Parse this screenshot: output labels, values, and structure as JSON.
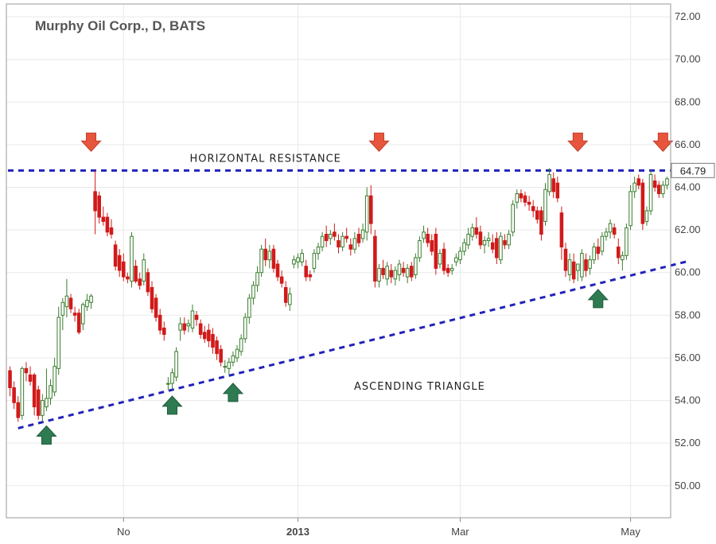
{
  "chart_data": {
    "type": "candlestick",
    "title": "Murphy Oil Corp., D, BATS",
    "ylim": [
      48.5,
      72.6
    ],
    "y_ticks": [
      "50.00",
      "52.00",
      "54.00",
      "56.00",
      "58.00",
      "60.00",
      "62.00",
      "64.00",
      "66.00",
      "68.00",
      "70.00",
      "72.00"
    ],
    "x_ticks": [
      {
        "label": "No",
        "index": 28,
        "bold": false
      },
      {
        "label": "2013",
        "index": 71,
        "bold": true
      },
      {
        "label": "Mar",
        "index": 111,
        "bold": false
      },
      {
        "label": "May",
        "index": 153,
        "bold": false
      }
    ],
    "last_price": "64.79",
    "grid": true,
    "colors": {
      "up": "#3a7d2e",
      "up_fill": "#ffffff",
      "down": "#d11a1a",
      "resistance": "#2222bb",
      "support": "#2222bb",
      "arrow_down": "#e8553d",
      "arrow_up": "#2e7b52"
    },
    "annotations": [
      {
        "text": "HORIZONTAL RESISTANCE",
        "index": 63,
        "y": 65.2
      },
      {
        "text": "ASCENDING TRIANGLE",
        "index": 101,
        "y": 54.5
      }
    ],
    "resistance": {
      "y": 64.79,
      "from_index": 0,
      "to_index": 167
    },
    "support": {
      "from_index": 2,
      "from_y": 52.7,
      "to_index": 167,
      "to_y": 60.55
    },
    "markers": [
      {
        "type": "down",
        "index": 20,
        "y": 66.1
      },
      {
        "type": "down",
        "index": 91,
        "y": 66.1
      },
      {
        "type": "down",
        "index": 140,
        "y": 66.1
      },
      {
        "type": "down",
        "index": 161,
        "y": 66.1
      },
      {
        "type": "up",
        "index": 9,
        "y": 52.4
      },
      {
        "type": "up",
        "index": 40,
        "y": 53.8
      },
      {
        "type": "up",
        "index": 55,
        "y": 54.4
      },
      {
        "type": "up",
        "index": 145,
        "y": 58.8
      }
    ],
    "candles": [
      [
        55.4,
        55.6,
        54.2,
        54.6
      ],
      [
        54.6,
        54.9,
        53.6,
        53.9
      ],
      [
        53.9,
        54.2,
        53.0,
        53.2
      ],
      [
        53.3,
        55.6,
        53.1,
        55.5
      ],
      [
        55.5,
        55.8,
        54.9,
        55.3
      ],
      [
        55.2,
        55.6,
        54.7,
        54.9
      ],
      [
        55.2,
        55.3,
        53.3,
        53.7
      ],
      [
        54.5,
        54.7,
        53.1,
        53.3
      ],
      [
        53.3,
        54.3,
        53.0,
        54.0
      ],
      [
        53.7,
        55.5,
        53.5,
        54.1
      ],
      [
        54.1,
        55.0,
        53.8,
        54.7
      ],
      [
        54.4,
        56.0,
        54.2,
        55.6
      ],
      [
        55.5,
        58.4,
        55.2,
        57.9
      ],
      [
        58.0,
        58.8,
        57.3,
        58.6
      ],
      [
        58.4,
        59.7,
        57.9,
        58.9
      ],
      [
        58.8,
        59.0,
        58.1,
        58.3
      ],
      [
        58.1,
        58.4,
        57.7,
        58.0
      ],
      [
        58.1,
        58.3,
        57.1,
        57.2
      ],
      [
        57.6,
        58.6,
        57.3,
        58.5
      ],
      [
        58.4,
        59.0,
        58.2,
        58.7
      ],
      [
        58.6,
        59.0,
        58.3,
        58.9
      ],
      [
        63.8,
        64.8,
        61.8,
        62.9
      ],
      [
        63.6,
        63.8,
        62.3,
        62.6
      ],
      [
        62.6,
        63.1,
        62.2,
        62.4
      ],
      [
        62.6,
        62.8,
        61.7,
        61.9
      ],
      [
        62.1,
        62.5,
        61.6,
        61.8
      ],
      [
        61.3,
        61.5,
        60.1,
        60.3
      ],
      [
        60.8,
        61.1,
        59.8,
        60.1
      ],
      [
        60.5,
        60.9,
        59.6,
        59.8
      ],
      [
        59.8,
        60.0,
        59.5,
        59.7
      ],
      [
        59.6,
        61.9,
        59.3,
        61.7
      ],
      [
        60.3,
        60.6,
        59.5,
        59.6
      ],
      [
        59.7,
        60.0,
        59.2,
        59.4
      ],
      [
        59.6,
        60.9,
        59.4,
        60.6
      ],
      [
        60.0,
        60.2,
        58.9,
        59.1
      ],
      [
        59.3,
        59.6,
        58.1,
        58.3
      ],
      [
        58.8,
        59.0,
        57.7,
        57.9
      ],
      [
        58.0,
        58.3,
        57.1,
        57.3
      ],
      [
        57.4,
        57.7,
        56.8,
        57.1
      ],
      [
        54.8,
        55.1,
        54.5,
        54.8
      ],
      [
        54.8,
        55.5,
        54.5,
        55.3
      ],
      [
        55.1,
        56.5,
        54.9,
        56.3
      ],
      [
        57.3,
        57.9,
        56.8,
        57.6
      ],
      [
        57.6,
        57.9,
        57.1,
        57.3
      ],
      [
        57.5,
        57.8,
        57.2,
        57.6
      ],
      [
        57.4,
        58.5,
        57.2,
        58.2
      ],
      [
        58.0,
        58.2,
        57.5,
        57.8
      ],
      [
        57.6,
        57.8,
        56.9,
        57.1
      ],
      [
        57.2,
        57.5,
        56.7,
        56.9
      ],
      [
        57.3,
        57.6,
        56.5,
        56.8
      ],
      [
        57.1,
        57.4,
        56.2,
        56.5
      ],
      [
        56.8,
        57.0,
        55.9,
        56.2
      ],
      [
        56.4,
        56.6,
        55.6,
        55.8
      ],
      [
        55.6,
        55.9,
        55.3,
        55.6
      ],
      [
        55.5,
        56.0,
        55.2,
        55.8
      ],
      [
        55.8,
        56.3,
        55.6,
        56.1
      ],
      [
        56.0,
        56.6,
        55.8,
        56.4
      ],
      [
        56.3,
        57.1,
        56.1,
        56.9
      ],
      [
        56.9,
        58.1,
        56.7,
        57.9
      ],
      [
        57.9,
        59.0,
        57.6,
        58.8
      ],
      [
        58.8,
        59.6,
        58.5,
        59.4
      ],
      [
        59.4,
        60.3,
        59.1,
        60.0
      ],
      [
        60.0,
        61.3,
        59.8,
        61.1
      ],
      [
        61.1,
        61.6,
        60.3,
        60.6
      ],
      [
        60.6,
        61.3,
        60.2,
        61.0
      ],
      [
        61.1,
        61.3,
        60.0,
        60.2
      ],
      [
        60.4,
        60.6,
        59.6,
        59.8
      ],
      [
        59.8,
        60.1,
        59.3,
        59.5
      ],
      [
        59.3,
        59.6,
        58.4,
        58.6
      ],
      [
        58.5,
        59.3,
        58.2,
        59.0
      ],
      [
        60.4,
        60.8,
        60.2,
        60.6
      ],
      [
        60.5,
        60.9,
        60.2,
        60.7
      ],
      [
        60.5,
        61.1,
        60.3,
        60.9
      ],
      [
        60.3,
        60.6,
        59.6,
        59.8
      ],
      [
        59.9,
        60.1,
        59.6,
        59.8
      ],
      [
        60.2,
        61.1,
        60.0,
        60.9
      ],
      [
        60.9,
        61.4,
        60.6,
        61.2
      ],
      [
        61.2,
        61.9,
        61.0,
        61.7
      ],
      [
        61.8,
        62.2,
        61.2,
        61.5
      ],
      [
        61.6,
        62.0,
        61.3,
        61.8
      ],
      [
        61.9,
        62.3,
        61.5,
        61.7
      ],
      [
        61.5,
        61.8,
        60.9,
        61.2
      ],
      [
        61.2,
        61.9,
        61.0,
        61.7
      ],
      [
        61.7,
        62.1,
        61.4,
        61.6
      ],
      [
        61.3,
        61.6,
        60.8,
        61.1
      ],
      [
        61.1,
        61.9,
        60.9,
        61.6
      ],
      [
        61.8,
        62.1,
        61.2,
        61.4
      ],
      [
        61.6,
        62.3,
        61.4,
        62.0
      ],
      [
        61.9,
        64.0,
        61.5,
        63.6
      ],
      [
        63.6,
        64.1,
        61.8,
        62.3
      ],
      [
        61.7,
        62.0,
        59.3,
        59.6
      ],
      [
        59.6,
        60.4,
        59.3,
        60.2
      ],
      [
        60.2,
        60.6,
        59.7,
        59.9
      ],
      [
        59.7,
        60.5,
        59.4,
        60.3
      ],
      [
        60.1,
        60.4,
        59.5,
        59.8
      ],
      [
        59.7,
        60.3,
        59.4,
        60.1
      ],
      [
        59.9,
        60.6,
        59.6,
        60.4
      ],
      [
        60.2,
        60.5,
        59.8,
        60.0
      ],
      [
        59.8,
        60.4,
        59.5,
        60.2
      ],
      [
        60.3,
        60.5,
        59.6,
        59.8
      ],
      [
        59.9,
        60.9,
        59.7,
        60.7
      ],
      [
        60.7,
        61.7,
        60.5,
        61.5
      ],
      [
        61.6,
        62.2,
        61.4,
        61.9
      ],
      [
        61.8,
        62.1,
        61.2,
        61.4
      ],
      [
        61.5,
        61.8,
        60.8,
        61.0
      ],
      [
        61.8,
        62.1,
        59.9,
        60.2
      ],
      [
        60.4,
        61.1,
        60.2,
        60.9
      ],
      [
        61.1,
        61.4,
        59.9,
        60.1
      ],
      [
        60.2,
        60.4,
        59.8,
        60.0
      ],
      [
        60.1,
        60.4,
        59.9,
        60.2
      ],
      [
        60.5,
        60.9,
        60.3,
        60.7
      ],
      [
        60.6,
        61.2,
        60.4,
        61.0
      ],
      [
        61.0,
        61.6,
        60.8,
        61.4
      ],
      [
        61.3,
        62.1,
        61.1,
        61.8
      ],
      [
        61.7,
        62.3,
        61.5,
        62.1
      ],
      [
        62.1,
        62.6,
        61.6,
        61.8
      ],
      [
        61.9,
        62.2,
        61.1,
        61.3
      ],
      [
        61.3,
        61.7,
        60.9,
        61.5
      ],
      [
        61.5,
        61.9,
        61.2,
        61.6
      ],
      [
        61.4,
        61.8,
        60.9,
        61.1
      ],
      [
        61.6,
        61.9,
        60.4,
        60.7
      ],
      [
        60.6,
        61.9,
        60.4,
        61.7
      ],
      [
        61.5,
        61.8,
        61.1,
        61.3
      ],
      [
        61.3,
        62.0,
        61.1,
        61.8
      ],
      [
        61.9,
        63.4,
        61.7,
        63.2
      ],
      [
        63.3,
        63.9,
        63.0,
        63.7
      ],
      [
        63.7,
        63.9,
        63.3,
        63.5
      ],
      [
        63.6,
        63.8,
        63.1,
        63.3
      ],
      [
        63.3,
        63.6,
        62.9,
        63.2
      ],
      [
        63.1,
        63.4,
        62.6,
        62.9
      ],
      [
        62.9,
        63.1,
        62.3,
        62.5
      ],
      [
        62.9,
        63.1,
        61.5,
        61.8
      ],
      [
        62.4,
        64.2,
        62.2,
        63.9
      ],
      [
        63.8,
        64.9,
        63.6,
        64.6
      ],
      [
        64.4,
        64.7,
        63.5,
        63.8
      ],
      [
        64.2,
        64.5,
        63.3,
        63.5
      ],
      [
        62.8,
        63.1,
        60.6,
        61.2
      ],
      [
        61.1,
        61.4,
        59.8,
        60.1
      ],
      [
        59.9,
        60.9,
        59.6,
        60.6
      ],
      [
        60.5,
        60.9,
        59.5,
        59.7
      ],
      [
        60.1,
        60.3,
        59.6,
        60.4
      ],
      [
        59.8,
        61.1,
        59.6,
        60.9
      ],
      [
        60.6,
        60.9,
        59.8,
        60.1
      ],
      [
        60.2,
        60.8,
        59.9,
        60.6
      ],
      [
        60.6,
        61.4,
        60.4,
        61.2
      ],
      [
        61.2,
        61.6,
        60.6,
        60.9
      ],
      [
        61.0,
        61.9,
        60.8,
        61.7
      ],
      [
        61.7,
        62.1,
        61.5,
        61.9
      ],
      [
        61.9,
        62.5,
        61.6,
        62.3
      ],
      [
        62.1,
        62.3,
        61.6,
        61.8
      ],
      [
        61.2,
        61.6,
        60.4,
        60.7
      ],
      [
        60.6,
        61.0,
        60.1,
        60.8
      ],
      [
        60.8,
        62.3,
        60.6,
        62.1
      ],
      [
        62.2,
        64.1,
        62.0,
        63.8
      ],
      [
        63.8,
        64.5,
        63.5,
        64.2
      ],
      [
        64.4,
        64.6,
        63.9,
        64.1
      ],
      [
        64.2,
        64.4,
        62.0,
        62.3
      ],
      [
        62.4,
        63.1,
        62.2,
        62.9
      ],
      [
        62.9,
        64.8,
        62.7,
        64.6
      ],
      [
        64.3,
        64.6,
        63.8,
        64.0
      ],
      [
        64.1,
        64.3,
        63.5,
        63.7
      ],
      [
        63.7,
        64.3,
        63.5,
        64.1
      ],
      [
        64.1,
        64.5,
        63.9,
        64.4
      ]
    ]
  }
}
